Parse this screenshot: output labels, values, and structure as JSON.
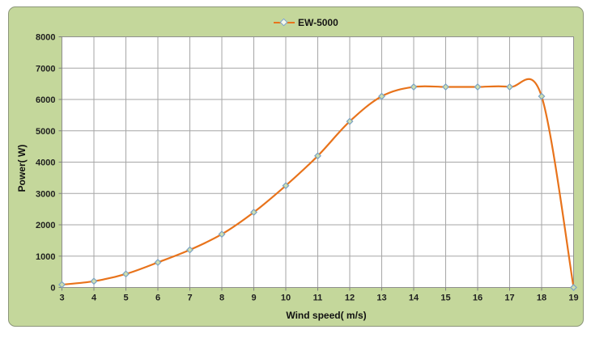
{
  "legend": {
    "label": "EW-5000"
  },
  "axes": {
    "x_title": "Wind speed( m/s)",
    "y_title": "Power( W)"
  },
  "chart_data": {
    "type": "line",
    "title": "",
    "xlabel": "Wind speed( m/s)",
    "ylabel": "Power( W)",
    "xlim": [
      3,
      19
    ],
    "ylim": [
      0,
      8000
    ],
    "xtick_step": 1,
    "ytick_step": 1000,
    "grid": true,
    "legend_position": "top-center",
    "series": [
      {
        "name": "EW-5000",
        "x": [
          3,
          4,
          5,
          6,
          7,
          8,
          9,
          10,
          11,
          12,
          13,
          14,
          15,
          16,
          17,
          18,
          19
        ],
        "values": [
          90,
          200,
          430,
          800,
          1200,
          1700,
          2400,
          3250,
          4200,
          5300,
          6100,
          6400,
          6400,
          6400,
          6400,
          6100,
          0
        ],
        "line_color": "#e8731b",
        "marker": "diamond",
        "marker_fill": "#cfdfae",
        "marker_stroke": "#7ba2c4"
      }
    ],
    "colors": {
      "chart_background": "#c4d79b",
      "plot_background": "#ffffff",
      "gridline": "#a6a6a6",
      "plot_border": "#8f8f8f",
      "tick": "#7f7f7f"
    }
  }
}
